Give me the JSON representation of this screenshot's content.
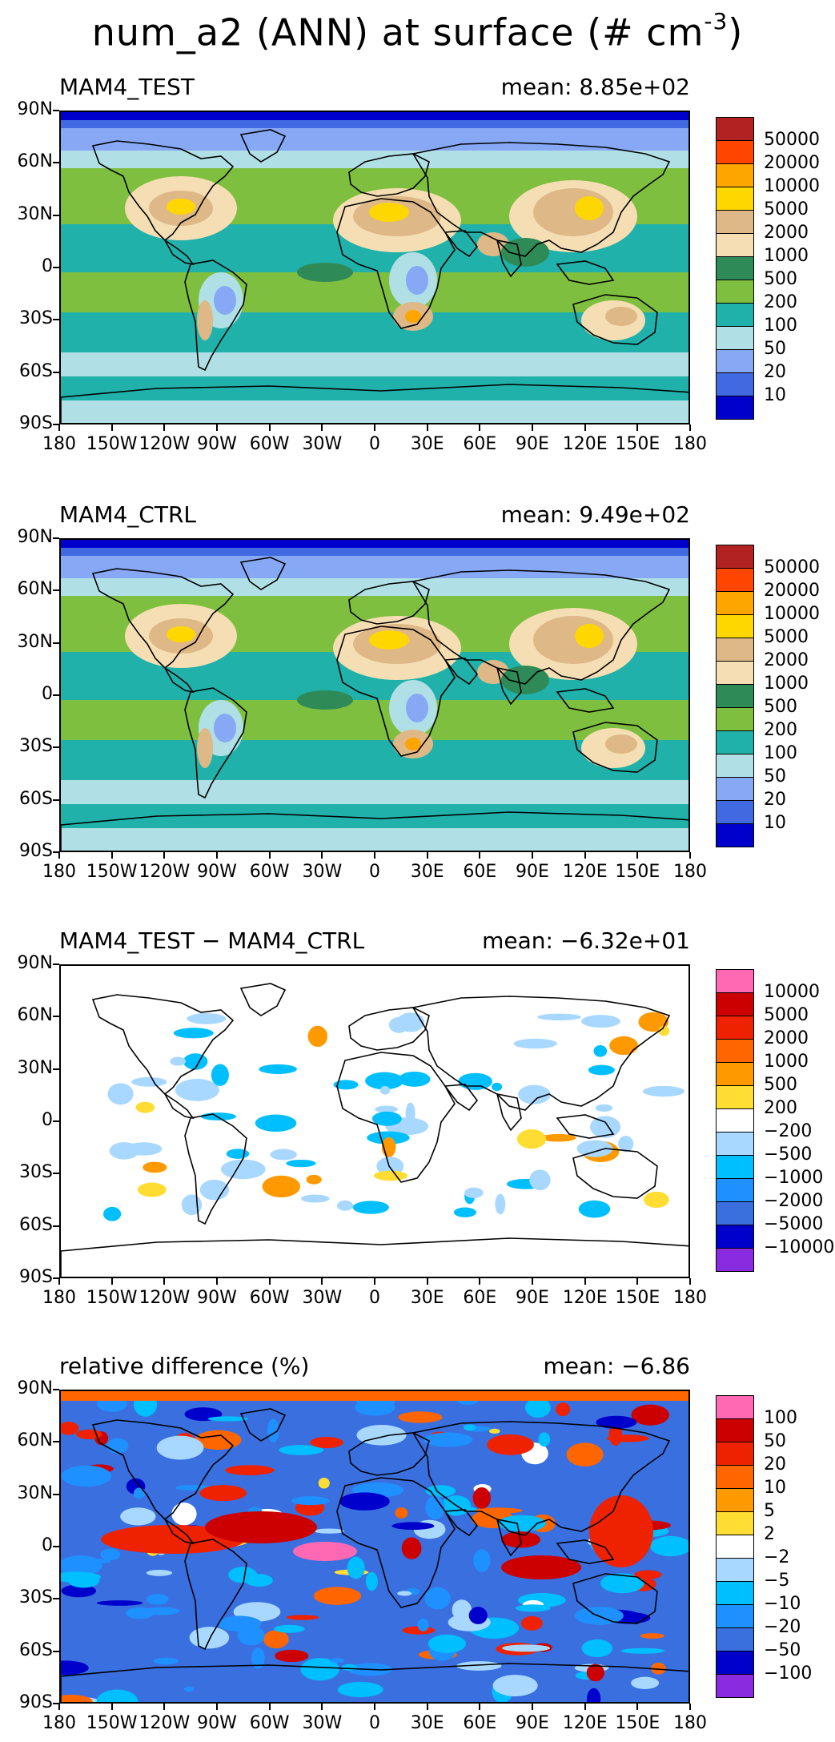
{
  "title_main": "num_a2 (ANN) at surface (# cm",
  "title_exp": "-3",
  "title_close": ")",
  "lat_ticks": [
    "90N",
    "60N",
    "30N",
    "0",
    "30S",
    "60S",
    "90S"
  ],
  "lon_ticks": [
    "180",
    "150W",
    "120W",
    "90W",
    "60W",
    "30W",
    "0",
    "30E",
    "60E",
    "90E",
    "120E",
    "150E",
    "180"
  ],
  "chart_data": [
    {
      "type": "heatmap",
      "panel_title": "MAM4_TEST",
      "mean_label": "mean: 8.85e+02",
      "mean": 885,
      "colorbar_levels": [
        "50000",
        "20000",
        "10000",
        "5000",
        "2000",
        "1000",
        "500",
        "200",
        "100",
        "50",
        "20",
        "10"
      ],
      "colorbar_colors": [
        "#b22222",
        "#ff4500",
        "#ffa500",
        "#ffd700",
        "#deb887",
        "#f5deb3",
        "#2e8b57",
        "#7fbf3f",
        "#20b2aa",
        "#b0e0e6",
        "#87a8f5",
        "#4169e1",
        "#0000cd"
      ],
      "xlim": [
        -180,
        180
      ],
      "ylim": [
        -90,
        90
      ]
    },
    {
      "type": "heatmap",
      "panel_title": "MAM4_CTRL",
      "mean_label": "mean: 9.49e+02",
      "mean": 949,
      "colorbar_levels": [
        "50000",
        "20000",
        "10000",
        "5000",
        "2000",
        "1000",
        "500",
        "200",
        "100",
        "50",
        "20",
        "10"
      ],
      "colorbar_colors": [
        "#b22222",
        "#ff4500",
        "#ffa500",
        "#ffd700",
        "#deb887",
        "#f5deb3",
        "#2e8b57",
        "#7fbf3f",
        "#20b2aa",
        "#b0e0e6",
        "#87a8f5",
        "#4169e1",
        "#0000cd"
      ],
      "xlim": [
        -180,
        180
      ],
      "ylim": [
        -90,
        90
      ]
    },
    {
      "type": "heatmap",
      "panel_title": "MAM4_TEST − MAM4_CTRL",
      "mean_label": "mean: −6.32e+01",
      "mean": -63.2,
      "colorbar_levels": [
        "10000",
        "5000",
        "2000",
        "1000",
        "500",
        "200",
        "−200",
        "−500",
        "−1000",
        "−2000",
        "−5000",
        "−10000"
      ],
      "colorbar_colors": [
        "#ff69b4",
        "#cc0000",
        "#ee2200",
        "#ff6600",
        "#ff9900",
        "#ffdd33",
        "#ffffff",
        "#a8d8ff",
        "#00bfff",
        "#1e90ff",
        "#3a6fe0",
        "#0000cd",
        "#8a2be2"
      ],
      "xlim": [
        -180,
        180
      ],
      "ylim": [
        -90,
        90
      ]
    },
    {
      "type": "heatmap",
      "panel_title": "relative difference (%)",
      "mean_label": "mean: −6.86",
      "mean": -6.86,
      "colorbar_levels": [
        "100",
        "50",
        "20",
        "10",
        "5",
        "2",
        "−2",
        "−5",
        "−10",
        "−20",
        "−50",
        "−100"
      ],
      "colorbar_colors": [
        "#ff69b4",
        "#cc0000",
        "#ee2200",
        "#ff6600",
        "#ff9900",
        "#ffdd33",
        "#ffffff",
        "#a8d8ff",
        "#00bfff",
        "#1e90ff",
        "#3a6fe0",
        "#0000cd",
        "#8a2be2"
      ],
      "xlim": [
        -180,
        180
      ],
      "ylim": [
        -90,
        90
      ]
    }
  ]
}
